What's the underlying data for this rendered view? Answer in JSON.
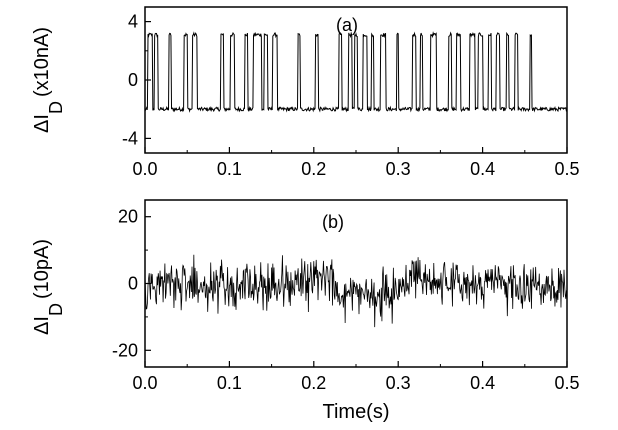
{
  "chart_data": [
    {
      "type": "line",
      "panel_label": "(a)",
      "ylabel_main": "ΔI",
      "ylabel_sub": "D",
      "ylabel_unit": "(x10nA)",
      "xlabel": "",
      "xlim": [
        0.0,
        0.5
      ],
      "ylim": [
        -5,
        5
      ],
      "x_ticks": [
        "0.0",
        "0.1",
        "0.2",
        "0.3",
        "0.4",
        "0.5"
      ],
      "y_ticks": [
        "4",
        "0",
        "-4"
      ],
      "x_tick_values": [
        0.0,
        0.1,
        0.2,
        0.3,
        0.4,
        0.5
      ],
      "y_tick_values": [
        4,
        0,
        -4
      ],
      "series": [
        {
          "signal": "two-level telegraph",
          "low_level": -2.0,
          "high_level": 3.1,
          "high_intervals": [
            [
              0.003,
              0.009
            ],
            [
              0.011,
              0.015
            ],
            [
              0.028,
              0.031
            ],
            [
              0.046,
              0.05
            ],
            [
              0.056,
              0.062
            ],
            [
              0.09,
              0.093
            ],
            [
              0.101,
              0.106
            ],
            [
              0.118,
              0.122
            ],
            [
              0.128,
              0.138
            ],
            [
              0.141,
              0.145
            ],
            [
              0.151,
              0.157
            ],
            [
              0.181,
              0.184
            ],
            [
              0.202,
              0.205
            ],
            [
              0.23,
              0.233
            ],
            [
              0.241,
              0.245
            ],
            [
              0.248,
              0.252
            ],
            [
              0.258,
              0.263
            ],
            [
              0.268,
              0.271
            ],
            [
              0.279,
              0.285
            ],
            [
              0.298,
              0.3
            ],
            [
              0.317,
              0.321
            ],
            [
              0.326,
              0.329
            ],
            [
              0.338,
              0.345
            ],
            [
              0.36,
              0.363
            ],
            [
              0.369,
              0.374
            ],
            [
              0.385,
              0.391
            ],
            [
              0.395,
              0.4
            ],
            [
              0.407,
              0.41
            ],
            [
              0.416,
              0.42
            ],
            [
              0.428,
              0.431
            ],
            [
              0.438,
              0.442
            ],
            [
              0.456,
              0.458
            ]
          ]
        }
      ]
    },
    {
      "type": "line",
      "panel_label": "(b)",
      "ylabel_main": "ΔI",
      "ylabel_sub": "D",
      "ylabel_unit": "(10pA)",
      "xlabel": "Time(s)",
      "xlim": [
        0.0,
        0.5
      ],
      "ylim": [
        -25,
        25
      ],
      "x_ticks": [
        "0.0",
        "0.1",
        "0.2",
        "0.3",
        "0.4",
        "0.5"
      ],
      "y_ticks": [
        "20",
        "0",
        "-20"
      ],
      "x_tick_values": [
        0.0,
        0.1,
        0.2,
        0.3,
        0.4,
        0.5
      ],
      "y_tick_values": [
        20,
        0,
        -20
      ],
      "series": [
        {
          "signal": "noise",
          "baseline": [
            [
              0.0,
              -3
            ],
            [
              0.02,
              2
            ],
            [
              0.05,
              0
            ],
            [
              0.1,
              0
            ],
            [
              0.18,
              0
            ],
            [
              0.215,
              3
            ],
            [
              0.23,
              -2
            ],
            [
              0.27,
              -2
            ],
            [
              0.3,
              -2
            ],
            [
              0.32,
              3
            ],
            [
              0.35,
              0
            ],
            [
              0.4,
              0
            ],
            [
              0.5,
              -1
            ]
          ],
          "noise_amplitude": 3.0
        }
      ]
    }
  ]
}
